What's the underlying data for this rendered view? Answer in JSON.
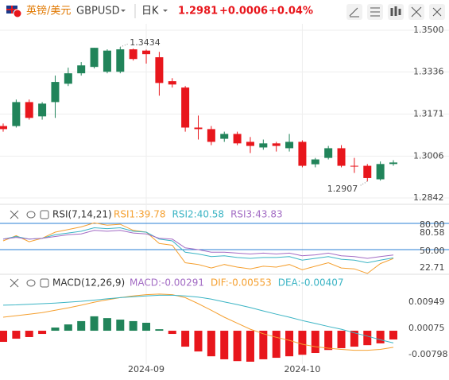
{
  "header": {
    "pair": "英镑/美元",
    "symbol": "GBPUSD",
    "period": "日K",
    "price": "1.2981",
    "change": "+0.0006",
    "change_pct": "+0.04%"
  },
  "chart_data": [
    {
      "type": "candlestick",
      "categories": [
        null,
        null,
        null,
        null,
        null,
        null,
        null,
        null,
        null,
        null,
        null,
        "2024-09",
        null,
        null,
        null,
        null,
        null,
        null,
        null,
        null,
        null,
        null,
        null,
        "2024-10",
        null,
        null,
        null,
        null,
        null,
        null,
        null
      ],
      "open": [
        1.3124,
        1.3124,
        1.3218,
        1.3162,
        1.3218,
        1.329,
        1.3331,
        1.3356,
        1.3337,
        1.3337,
        1.3425,
        1.342,
        1.3394,
        1.33,
        1.3275,
        1.3118,
        1.3112,
        1.3074,
        1.3093,
        1.3062,
        1.304,
        1.3056,
        1.3037,
        1.3062,
        1.2974,
        1.2999,
        1.3037,
        1.2968,
        1.2968,
        1.2915,
        1.2975
      ],
      "high": [
        1.3134,
        1.3228,
        1.3228,
        1.3218,
        1.3322,
        1.3353,
        1.3375,
        1.3431,
        1.3425,
        1.3434,
        1.3428,
        1.3424,
        1.3415,
        1.3312,
        1.3281,
        1.3165,
        1.3124,
        1.3102,
        1.3102,
        1.3081,
        1.3071,
        1.3062,
        1.3093,
        1.3068,
        1.2999,
        1.3046,
        1.3049,
        1.2999,
        1.2975,
        1.2985,
        1.299
      ],
      "low": [
        1.3102,
        1.3118,
        1.3149,
        1.3149,
        1.3156,
        1.3281,
        1.3322,
        1.335,
        1.3331,
        1.3331,
        1.3381,
        1.3369,
        1.3243,
        1.3275,
        1.3102,
        1.3071,
        1.3049,
        1.3062,
        1.3049,
        1.3018,
        1.3031,
        1.3024,
        1.3024,
        1.2962,
        1.2962,
        1.2993,
        1.2962,
        1.294,
        1.2907,
        1.291,
        1.2968
      ],
      "close": [
        1.3112,
        1.3218,
        1.3156,
        1.3212,
        1.3297,
        1.3331,
        1.3362,
        1.3431,
        1.342,
        1.3425,
        1.3387,
        1.3406,
        1.3293,
        1.3287,
        1.3118,
        1.3112,
        1.3062,
        1.3093,
        1.3056,
        1.3046,
        1.3056,
        1.3046,
        1.3062,
        1.2968,
        1.2993,
        1.3037,
        1.2968,
        1.2965,
        1.292,
        1.2975,
        1.2981
      ],
      "up_color": "#21845a",
      "down_color": "#e8161c",
      "max_label": "1.3434",
      "min_label": "1.2907",
      "ylim": [
        1.282,
        1.3525
      ],
      "yticks": [
        {
          "value": 1.35,
          "label": "1.3500"
        },
        1.3336,
        1.3171,
        1.3006,
        1.2842
      ],
      "grid": true
    },
    {
      "type": "line",
      "title": "RSI(7,14,21)",
      "series": [
        {
          "name": "RSI1:39.78",
          "color": "#f5a030",
          "values": [
            60,
            66,
            59,
            63,
            70,
            73,
            76,
            80.58,
            78,
            79,
            72,
            70,
            57,
            55,
            35,
            33,
            29,
            33,
            30,
            28,
            31,
            30,
            33,
            27,
            31,
            35,
            29,
            28,
            22.71,
            34,
            39.78
          ]
        },
        {
          "name": "RSI2:40.58",
          "color": "#3bb4c4",
          "values": [
            62,
            65,
            62,
            63,
            67,
            69,
            71,
            75,
            74,
            75,
            71,
            70,
            62,
            60,
            47,
            45,
            42,
            43,
            41,
            40,
            41,
            41,
            42,
            38,
            40,
            42,
            39,
            38,
            35,
            38,
            40.58
          ]
        },
        {
          "name": "RSI3:43.83",
          "color": "#a36cc4",
          "values": [
            62,
            64,
            62,
            63,
            65,
            67,
            68,
            72,
            71,
            72,
            69,
            68,
            63,
            62,
            52,
            50,
            47,
            47,
            46,
            45,
            46,
            45,
            46,
            43,
            44,
            46,
            43,
            42,
            40,
            42,
            43.83
          ]
        }
      ],
      "ylim": [
        21.8,
        97.3
      ],
      "yticks": [
        {
          "value": 80,
          "label": "80.00"
        },
        {
          "value": 50,
          "label": "50.00"
        }
      ],
      "extreme_labels": [
        "80.58",
        "22.71"
      ],
      "grid_color": "#2a7fd4"
    },
    {
      "type": "macd",
      "title": "MACD(12,26,9)",
      "histogram": {
        "name": "MACD:-0.00291",
        "color": "#a36cc4",
        "up_color": "#21845a",
        "down_color": "#e8161c",
        "values": [
          -0.0037,
          -0.00265,
          -0.0021,
          -0.00106,
          0.00106,
          0.0021,
          0.0032,
          0.0048,
          0.0042,
          0.0037,
          0.0032,
          0.00265,
          0.0005,
          -0.00106,
          -0.0053,
          -0.0069,
          -0.0085,
          -0.0095,
          -0.0101,
          -0.0103,
          -0.0095,
          -0.009,
          -0.0085,
          -0.008,
          -0.0074,
          -0.0064,
          -0.0058,
          -0.0053,
          -0.0048,
          -0.0042,
          -0.00291
        ]
      },
      "series": [
        {
          "name": "DIF:-0.00553",
          "color": "#f5a030",
          "values": [
            0.0045,
            0.005,
            0.0055,
            0.006,
            0.0068,
            0.0076,
            0.0085,
            0.0095,
            0.0103,
            0.011,
            0.0116,
            0.012,
            0.0122,
            0.012,
            0.011,
            0.009,
            0.0068,
            0.0045,
            0.0025,
            0.0005,
            -0.001,
            -0.0022,
            -0.0032,
            -0.0045,
            -0.0053,
            -0.0058,
            -0.0062,
            -0.0065,
            -0.0065,
            -0.0062,
            -0.00553
          ]
        },
        {
          "name": "DEA:-0.00407",
          "color": "#3bb4c4",
          "values": [
            0.0085,
            0.0086,
            0.0088,
            0.009,
            0.0092,
            0.0095,
            0.0098,
            0.0102,
            0.0106,
            0.011,
            0.0113,
            0.0116,
            0.0118,
            0.0118,
            0.0116,
            0.0112,
            0.0105,
            0.0096,
            0.0087,
            0.0077,
            0.0066,
            0.0055,
            0.0045,
            0.0034,
            0.0024,
            0.0014,
            0.0005,
            -0.0007,
            -0.0018,
            -0.003,
            -0.00407
          ]
        }
      ],
      "ylim": [
        -0.0111,
        0.0127
      ],
      "yticks": [
        0.00949,
        0.00075,
        -0.00798
      ]
    }
  ]
}
